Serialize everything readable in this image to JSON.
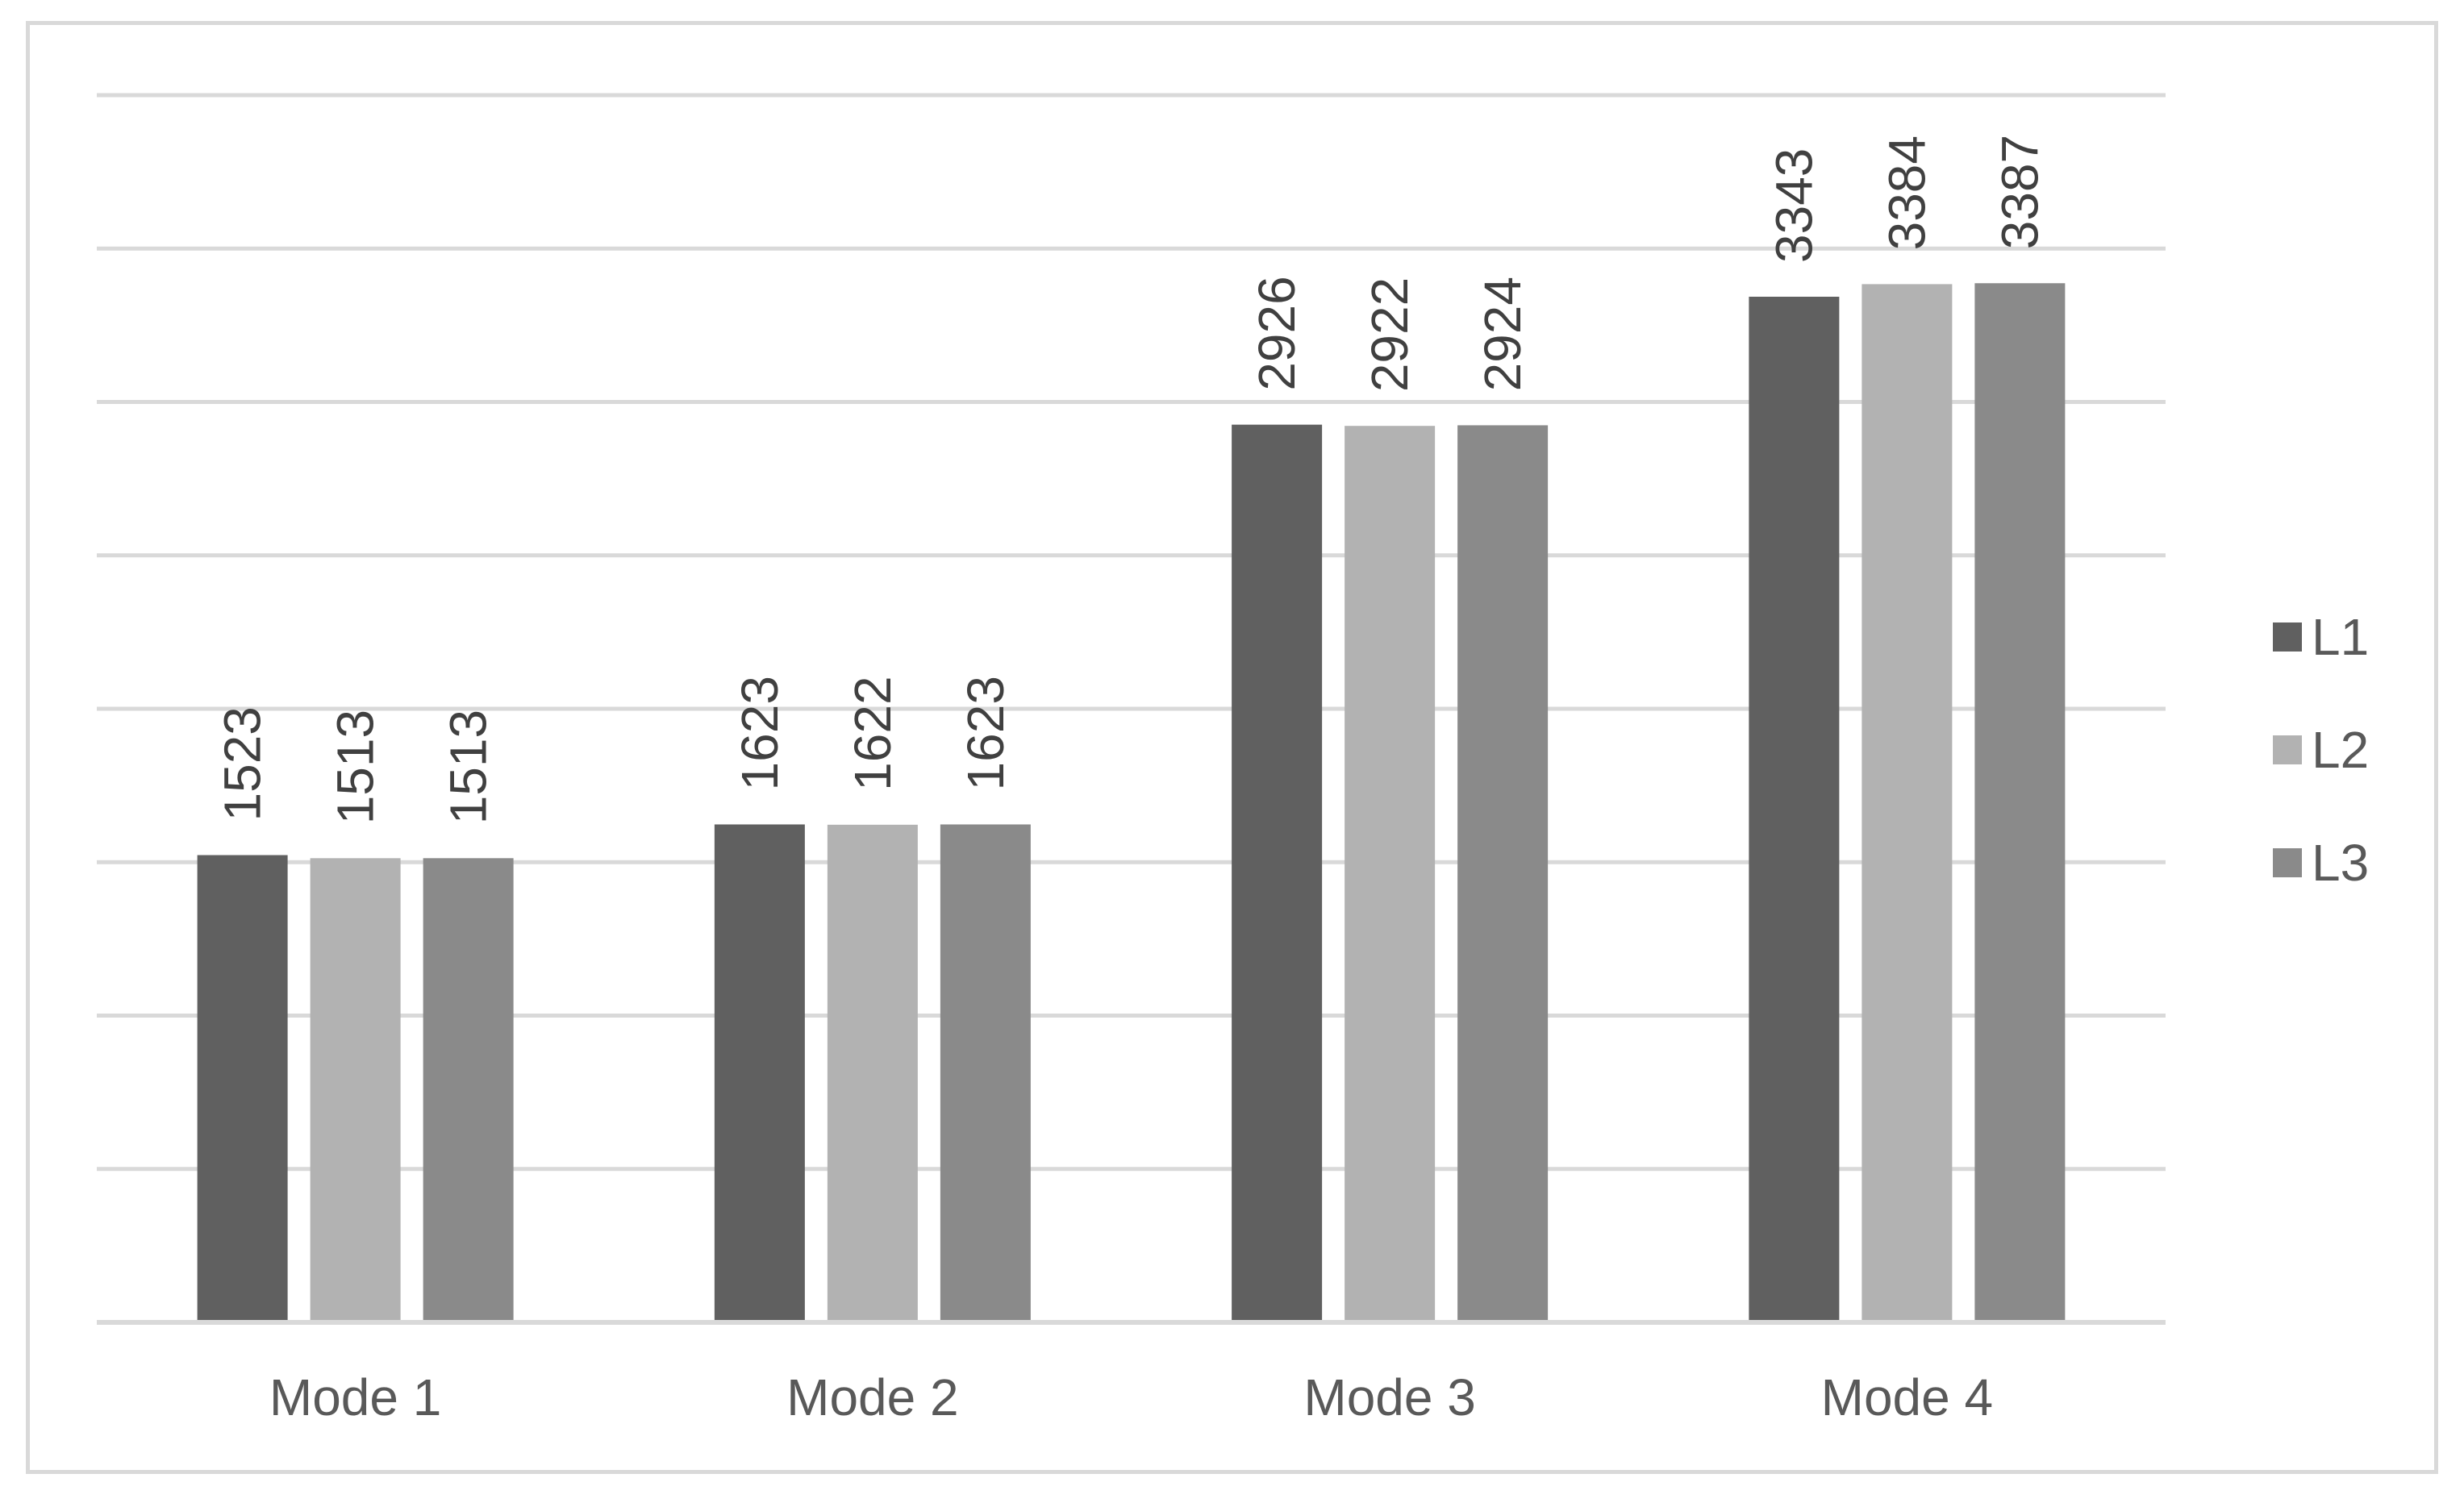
{
  "chart_data": {
    "type": "bar",
    "title": "",
    "xlabel": "",
    "ylabel": "",
    "categories": [
      "Mode 1",
      "Mode 2",
      "Mode 3",
      "Mode 4"
    ],
    "series": [
      {
        "name": "L1",
        "color": "#606060",
        "values": [
          1523,
          1623,
          2926,
          3343
        ]
      },
      {
        "name": "L2",
        "color": "#b2b2b2",
        "values": [
          1513,
          1622,
          2922,
          3384
        ]
      },
      {
        "name": "L3",
        "color": "#8a8a8a",
        "values": [
          1513,
          1623,
          2924,
          3387
        ]
      }
    ],
    "ylim": [
      0,
      4000
    ],
    "ytick_step": 500,
    "ytick_labels_shown": false,
    "grid": true,
    "data_labels": true,
    "data_label_rotation": "vertical",
    "legend_position": "right"
  }
}
